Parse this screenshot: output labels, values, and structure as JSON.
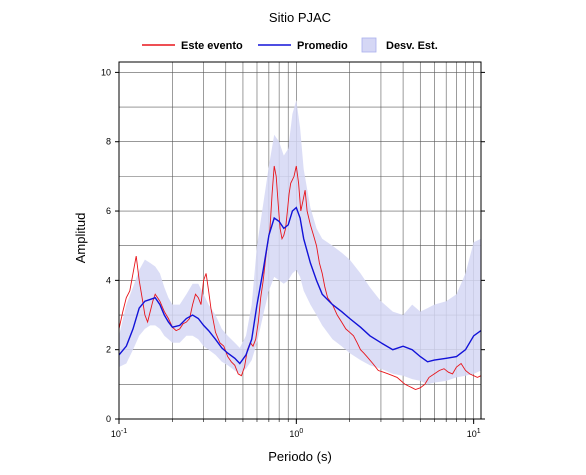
{
  "chart_data": {
    "type": "line",
    "title": "Sitio PJAC",
    "xlabel": "Periodo (s)",
    "ylabel": "Amplitud",
    "xscale": "log",
    "xlim": [
      0.1,
      11
    ],
    "ylim": [
      0,
      10.3
    ],
    "x_ticks": [
      {
        "value": 0.1,
        "base": "10",
        "exp": "-1"
      },
      {
        "value": 1,
        "base": "10",
        "exp": "0"
      },
      {
        "value": 10,
        "base": "10",
        "exp": "1"
      }
    ],
    "y_ticks": [
      {
        "value": 0,
        "label": "0"
      },
      {
        "value": 2,
        "label": "2"
      },
      {
        "value": 4,
        "label": "4"
      },
      {
        "value": 6,
        "label": "6"
      },
      {
        "value": 8,
        "label": "8"
      },
      {
        "value": 10,
        "label": "10"
      }
    ],
    "grid": true,
    "legend_position": "top-center",
    "legend": [
      {
        "label": "Este evento",
        "kind": "line",
        "color": "#e8151b"
      },
      {
        "label": "Promedio",
        "kind": "line",
        "color": "#1212d8"
      },
      {
        "label": "Desv. Est.",
        "kind": "box",
        "color": "#d5d7f5"
      }
    ],
    "colors": {
      "event": "#e8151b",
      "mean": "#1212d8",
      "band": "#d5d7f5",
      "band_edge": "#aab0ee"
    },
    "series": {
      "mean": {
        "name": "Promedio",
        "x": [
          0.1,
          0.11,
          0.12,
          0.13,
          0.14,
          0.15,
          0.16,
          0.17,
          0.18,
          0.19,
          0.2,
          0.22,
          0.24,
          0.26,
          0.28,
          0.3,
          0.32,
          0.35,
          0.38,
          0.41,
          0.45,
          0.48,
          0.52,
          0.56,
          0.6,
          0.65,
          0.7,
          0.75,
          0.8,
          0.85,
          0.9,
          0.95,
          1.0,
          1.05,
          1.1,
          1.2,
          1.3,
          1.4,
          1.6,
          1.8,
          2.0,
          2.3,
          2.6,
          3.0,
          3.5,
          4.0,
          4.5,
          5.0,
          5.5,
          6.0,
          7.0,
          8.0,
          9.0,
          10.0,
          11.0
        ],
        "y": [
          1.85,
          2.1,
          2.6,
          3.2,
          3.4,
          3.45,
          3.5,
          3.3,
          3.0,
          2.8,
          2.65,
          2.7,
          2.9,
          3.0,
          2.9,
          2.7,
          2.55,
          2.3,
          2.05,
          1.9,
          1.75,
          1.6,
          1.85,
          2.3,
          3.3,
          4.3,
          5.3,
          5.8,
          5.7,
          5.5,
          5.6,
          6.0,
          6.1,
          5.8,
          5.2,
          4.5,
          4.0,
          3.6,
          3.3,
          3.1,
          2.9,
          2.65,
          2.4,
          2.2,
          2.0,
          2.1,
          2.0,
          1.8,
          1.65,
          1.7,
          1.75,
          1.8,
          2.0,
          2.4,
          2.55
        ]
      },
      "std_upper": {
        "x": [
          0.1,
          0.11,
          0.12,
          0.13,
          0.14,
          0.15,
          0.16,
          0.17,
          0.18,
          0.19,
          0.2,
          0.22,
          0.24,
          0.26,
          0.28,
          0.3,
          0.32,
          0.35,
          0.38,
          0.41,
          0.45,
          0.48,
          0.52,
          0.56,
          0.6,
          0.65,
          0.7,
          0.75,
          0.8,
          0.85,
          0.9,
          0.95,
          1.0,
          1.05,
          1.1,
          1.2,
          1.3,
          1.4,
          1.6,
          1.8,
          2.0,
          2.3,
          2.6,
          3.0,
          3.5,
          4.0,
          4.5,
          5.0,
          5.5,
          6.0,
          7.0,
          8.0,
          9.0,
          10.0,
          11.0
        ],
        "y": [
          2.4,
          3.3,
          3.8,
          4.3,
          4.6,
          4.5,
          4.4,
          4.2,
          3.8,
          3.5,
          3.3,
          3.3,
          3.6,
          3.9,
          3.9,
          3.6,
          3.3,
          3.0,
          2.6,
          2.4,
          2.2,
          2.05,
          2.4,
          3.3,
          5.0,
          6.2,
          7.3,
          8.2,
          8.0,
          7.6,
          7.8,
          8.8,
          9.2,
          8.4,
          7.2,
          6.1,
          5.5,
          5.2,
          5.0,
          4.8,
          4.6,
          4.2,
          3.8,
          3.4,
          3.1,
          3.0,
          3.3,
          3.1,
          3.2,
          3.3,
          3.4,
          3.6,
          4.2,
          5.1,
          5.2
        ]
      },
      "std_lower": {
        "x": [
          0.1,
          0.11,
          0.12,
          0.13,
          0.14,
          0.15,
          0.16,
          0.17,
          0.18,
          0.19,
          0.2,
          0.22,
          0.24,
          0.26,
          0.28,
          0.3,
          0.32,
          0.35,
          0.38,
          0.41,
          0.45,
          0.48,
          0.52,
          0.56,
          0.6,
          0.65,
          0.7,
          0.75,
          0.8,
          0.85,
          0.9,
          0.95,
          1.0,
          1.05,
          1.1,
          1.2,
          1.3,
          1.4,
          1.6,
          1.8,
          2.0,
          2.3,
          2.6,
          3.0,
          3.5,
          4.0,
          4.5,
          5.0,
          5.5,
          6.0,
          7.0,
          8.0,
          9.0,
          10.0,
          11.0
        ],
        "y": [
          1.5,
          1.6,
          2.0,
          2.4,
          2.6,
          2.7,
          2.7,
          2.6,
          2.4,
          2.3,
          2.2,
          2.2,
          2.4,
          2.4,
          2.3,
          2.1,
          2.0,
          1.85,
          1.65,
          1.55,
          1.4,
          1.3,
          1.45,
          1.7,
          2.2,
          3.0,
          3.7,
          4.1,
          4.0,
          3.9,
          4.0,
          4.2,
          4.3,
          4.1,
          3.7,
          3.3,
          3.0,
          2.7,
          2.3,
          2.1,
          1.9,
          1.7,
          1.55,
          1.45,
          1.3,
          1.25,
          1.15,
          1.1,
          1.0,
          1.05,
          1.1,
          1.2,
          1.25,
          1.3,
          1.4
        ]
      },
      "event": {
        "name": "Este evento",
        "x": [
          0.1,
          0.105,
          0.11,
          0.115,
          0.12,
          0.125,
          0.13,
          0.135,
          0.14,
          0.145,
          0.15,
          0.155,
          0.16,
          0.165,
          0.17,
          0.18,
          0.19,
          0.2,
          0.21,
          0.22,
          0.23,
          0.24,
          0.25,
          0.26,
          0.27,
          0.28,
          0.29,
          0.3,
          0.31,
          0.32,
          0.33,
          0.35,
          0.37,
          0.39,
          0.41,
          0.43,
          0.45,
          0.47,
          0.49,
          0.51,
          0.53,
          0.55,
          0.57,
          0.59,
          0.61,
          0.63,
          0.65,
          0.67,
          0.69,
          0.71,
          0.73,
          0.75,
          0.77,
          0.79,
          0.81,
          0.83,
          0.85,
          0.87,
          0.89,
          0.91,
          0.93,
          0.95,
          0.97,
          1.0,
          1.03,
          1.06,
          1.09,
          1.12,
          1.15,
          1.2,
          1.25,
          1.3,
          1.35,
          1.4,
          1.45,
          1.5,
          1.6,
          1.7,
          1.8,
          1.9,
          2.0,
          2.1,
          2.2,
          2.3,
          2.4,
          2.5,
          2.7,
          2.9,
          3.1,
          3.3,
          3.5,
          3.7,
          3.9,
          4.1,
          4.3,
          4.5,
          4.7,
          5.0,
          5.3,
          5.6,
          6.0,
          6.4,
          6.8,
          7.2,
          7.6,
          8.0,
          8.5,
          9.0,
          9.5,
          10.0,
          10.5,
          11.0
        ],
        "y": [
          2.6,
          3.1,
          3.5,
          3.7,
          4.2,
          4.7,
          4.0,
          3.5,
          3.0,
          2.8,
          3.1,
          3.4,
          3.6,
          3.5,
          3.4,
          3.1,
          2.9,
          2.65,
          2.55,
          2.6,
          2.75,
          2.8,
          2.9,
          3.3,
          3.6,
          3.5,
          3.3,
          4.0,
          4.2,
          3.7,
          3.2,
          2.5,
          2.2,
          2.1,
          1.8,
          1.65,
          1.55,
          1.3,
          1.25,
          1.5,
          2.0,
          2.2,
          2.1,
          2.3,
          2.8,
          3.5,
          4.0,
          4.6,
          5.1,
          5.5,
          6.5,
          7.3,
          7.0,
          6.2,
          5.5,
          5.2,
          5.3,
          5.5,
          6.0,
          6.5,
          6.8,
          6.9,
          7.0,
          7.3,
          6.8,
          6.0,
          6.3,
          6.6,
          6.0,
          5.6,
          5.3,
          5.0,
          4.5,
          4.2,
          3.8,
          3.5,
          3.3,
          3.0,
          2.8,
          2.6,
          2.5,
          2.4,
          2.2,
          2.0,
          1.9,
          1.8,
          1.6,
          1.4,
          1.35,
          1.3,
          1.25,
          1.2,
          1.1,
          1.0,
          0.95,
          0.9,
          0.85,
          0.9,
          1.0,
          1.2,
          1.3,
          1.4,
          1.45,
          1.35,
          1.3,
          1.5,
          1.6,
          1.4,
          1.3,
          1.25,
          1.2,
          1.25
        ]
      }
    }
  }
}
